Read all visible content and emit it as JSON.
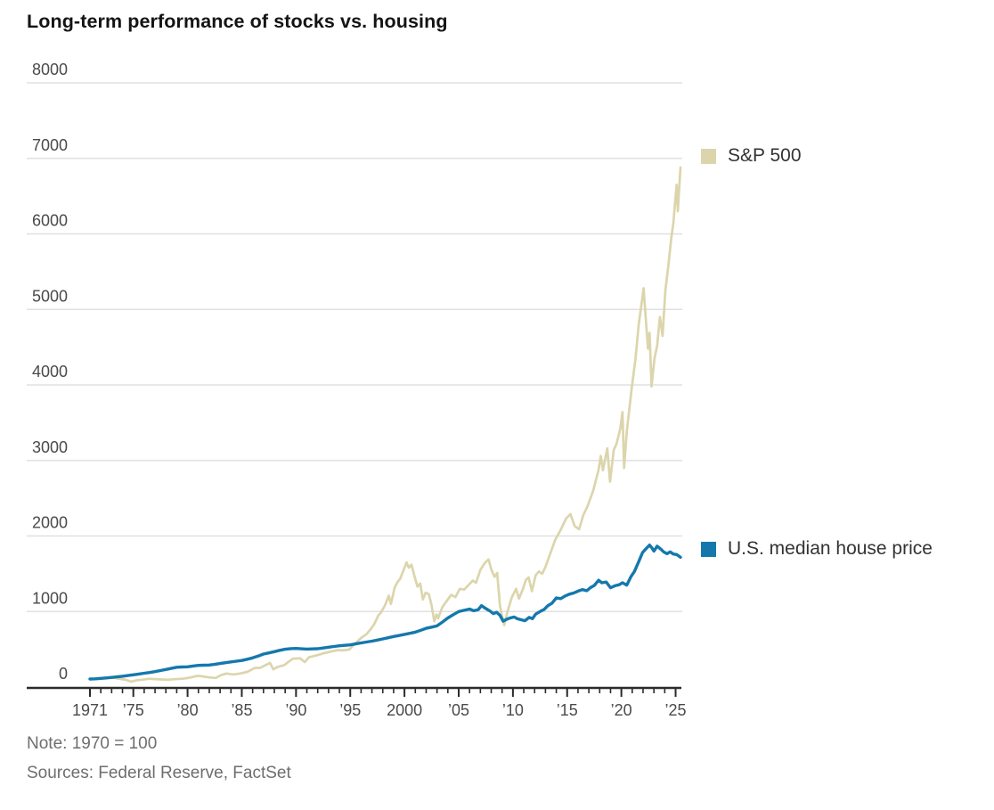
{
  "title": "Long-term performance of stocks vs. housing",
  "note": "Note: 1970 = 100",
  "sources": "Sources: Federal Reserve, FactSet",
  "colors": {
    "sp500": "#dcd5ac",
    "house": "#1478ad",
    "grid": "#e0e0e0",
    "axis": "#2b2b2b",
    "tick_label": "#4a4a4a",
    "title_text": "#141414",
    "note_text": "#6e6e6e",
    "background": "#ffffff"
  },
  "legend": [
    {
      "label": "S&P 500",
      "color": "#dcd5ac"
    },
    {
      "label": "U.S. median house price",
      "color": "#1478ad"
    }
  ],
  "chart_data": {
    "type": "line",
    "title": "Long-term performance of stocks vs. housing",
    "xlabel": "",
    "ylabel": "",
    "note": "1970 = 100",
    "grid": true,
    "legend_position": "right of plot, aligned with series endpoints",
    "x_domain": [
      1971,
      2025.45
    ],
    "y_domain": [
      0,
      8000
    ],
    "y_ticks": [
      0,
      1000,
      2000,
      3000,
      4000,
      5000,
      6000,
      7000,
      8000
    ],
    "x_ticks": [
      {
        "year": 1971,
        "label": "1971"
      },
      {
        "year": 1975,
        "label": "’75"
      },
      {
        "year": 1980,
        "label": "’80"
      },
      {
        "year": 1985,
        "label": "’85"
      },
      {
        "year": 1990,
        "label": "’90"
      },
      {
        "year": 1995,
        "label": "’95"
      },
      {
        "year": 2000,
        "label": "2000"
      },
      {
        "year": 2005,
        "label": "’05"
      },
      {
        "year": 2010,
        "label": "’10"
      },
      {
        "year": 2015,
        "label": "’15"
      },
      {
        "year": 2020,
        "label": "’20"
      },
      {
        "year": 2025,
        "label": "’25"
      }
    ],
    "minor_tick_years_step": 1,
    "series": [
      {
        "name": "S&P 500",
        "color": "#dcd5ac",
        "points": [
          [
            1971,
            104
          ],
          [
            1971.5,
            110
          ],
          [
            1972,
            116
          ],
          [
            1972.9,
            127
          ],
          [
            1973.3,
            120
          ],
          [
            1973.8,
            106
          ],
          [
            1974.2,
            99
          ],
          [
            1974.8,
            72
          ],
          [
            1975.3,
            90
          ],
          [
            1975.8,
            97
          ],
          [
            1976.5,
            110
          ],
          [
            1977,
            105
          ],
          [
            1977.8,
            99
          ],
          [
            1978.2,
            96
          ],
          [
            1978.8,
            104
          ],
          [
            1979.5,
            110
          ],
          [
            1980,
            119
          ],
          [
            1980.9,
            148
          ],
          [
            1981.3,
            143
          ],
          [
            1982,
            128
          ],
          [
            1982.6,
            120
          ],
          [
            1983.1,
            158
          ],
          [
            1983.6,
            179
          ],
          [
            1984.2,
            166
          ],
          [
            1984.8,
            178
          ],
          [
            1985.5,
            200
          ],
          [
            1986.2,
            252
          ],
          [
            1986.7,
            255
          ],
          [
            1987.6,
            320
          ],
          [
            1987.9,
            235
          ],
          [
            1988.3,
            265
          ],
          [
            1988.9,
            290
          ],
          [
            1989.7,
            375
          ],
          [
            1990.4,
            380
          ],
          [
            1990.8,
            330
          ],
          [
            1991.2,
            395
          ],
          [
            1991.9,
            420
          ],
          [
            1992.5,
            445
          ],
          [
            1993.2,
            470
          ],
          [
            1993.9,
            490
          ],
          [
            1994.3,
            485
          ],
          [
            1994.9,
            495
          ],
          [
            1995.5,
            580
          ],
          [
            1996,
            650
          ],
          [
            1996.5,
            700
          ],
          [
            1996.8,
            750
          ],
          [
            1997.2,
            830
          ],
          [
            1997.6,
            950
          ],
          [
            1997.8,
            980
          ],
          [
            1998.2,
            1080
          ],
          [
            1998.55,
            1210
          ],
          [
            1998.75,
            1100
          ],
          [
            1999.1,
            1320
          ],
          [
            1999.4,
            1400
          ],
          [
            1999.6,
            1430
          ],
          [
            2000.2,
            1650
          ],
          [
            2000.4,
            1580
          ],
          [
            2000.65,
            1620
          ],
          [
            2000.9,
            1480
          ],
          [
            2001.2,
            1330
          ],
          [
            2001.45,
            1370
          ],
          [
            2001.7,
            1160
          ],
          [
            2001.95,
            1250
          ],
          [
            2002.25,
            1230
          ],
          [
            2002.5,
            1080
          ],
          [
            2002.75,
            870
          ],
          [
            2002.95,
            960
          ],
          [
            2003.1,
            910
          ],
          [
            2003.5,
            1060
          ],
          [
            2003.9,
            1140
          ],
          [
            2004.3,
            1220
          ],
          [
            2004.7,
            1190
          ],
          [
            2005.1,
            1300
          ],
          [
            2005.5,
            1290
          ],
          [
            2005.9,
            1350
          ],
          [
            2006.3,
            1410
          ],
          [
            2006.6,
            1380
          ],
          [
            2007,
            1550
          ],
          [
            2007.4,
            1640
          ],
          [
            2007.75,
            1690
          ],
          [
            2008,
            1560
          ],
          [
            2008.3,
            1460
          ],
          [
            2008.55,
            1510
          ],
          [
            2008.8,
            1080
          ],
          [
            2008.95,
            970
          ],
          [
            2009.2,
            820
          ],
          [
            2009.5,
            1000
          ],
          [
            2009.9,
            1190
          ],
          [
            2010.3,
            1300
          ],
          [
            2010.55,
            1170
          ],
          [
            2010.9,
            1290
          ],
          [
            2011.2,
            1420
          ],
          [
            2011.45,
            1450
          ],
          [
            2011.75,
            1270
          ],
          [
            2012.1,
            1480
          ],
          [
            2012.4,
            1530
          ],
          [
            2012.7,
            1500
          ],
          [
            2013,
            1590
          ],
          [
            2013.5,
            1790
          ],
          [
            2013.9,
            1950
          ],
          [
            2014.4,
            2080
          ],
          [
            2014.9,
            2230
          ],
          [
            2015.3,
            2290
          ],
          [
            2015.7,
            2130
          ],
          [
            2016.1,
            2090
          ],
          [
            2016.5,
            2280
          ],
          [
            2016.9,
            2400
          ],
          [
            2017.4,
            2600
          ],
          [
            2017.9,
            2880
          ],
          [
            2018.1,
            3060
          ],
          [
            2018.3,
            2870
          ],
          [
            2018.7,
            3160
          ],
          [
            2018.95,
            2720
          ],
          [
            2019.3,
            3140
          ],
          [
            2019.55,
            3220
          ],
          [
            2019.9,
            3420
          ],
          [
            2020.1,
            3640
          ],
          [
            2020.25,
            2900
          ],
          [
            2020.5,
            3380
          ],
          [
            2020.75,
            3700
          ],
          [
            2020.95,
            3950
          ],
          [
            2021.3,
            4350
          ],
          [
            2021.6,
            4800
          ],
          [
            2021.95,
            5170
          ],
          [
            2022.05,
            5280
          ],
          [
            2022.3,
            4790
          ],
          [
            2022.45,
            4480
          ],
          [
            2022.6,
            4690
          ],
          [
            2022.78,
            3980
          ],
          [
            2023.05,
            4350
          ],
          [
            2023.3,
            4520
          ],
          [
            2023.55,
            4900
          ],
          [
            2023.8,
            4650
          ],
          [
            2024.05,
            5250
          ],
          [
            2024.35,
            5600
          ],
          [
            2024.6,
            5950
          ],
          [
            2024.8,
            6150
          ],
          [
            2024.95,
            6420
          ],
          [
            2025.1,
            6650
          ],
          [
            2025.2,
            6300
          ],
          [
            2025.45,
            6880
          ]
        ]
      },
      {
        "name": "U.S. median house price",
        "color": "#1478ad",
        "points": [
          [
            1971,
            106
          ],
          [
            1971.5,
            109
          ],
          [
            1972,
            114
          ],
          [
            1972.5,
            120
          ],
          [
            1973,
            127
          ],
          [
            1973.5,
            135
          ],
          [
            1974,
            143
          ],
          [
            1974.5,
            152
          ],
          [
            1975,
            162
          ],
          [
            1975.5,
            172
          ],
          [
            1976,
            183
          ],
          [
            1976.5,
            192
          ],
          [
            1977,
            204
          ],
          [
            1977.5,
            218
          ],
          [
            1978,
            233
          ],
          [
            1978.5,
            247
          ],
          [
            1979,
            262
          ],
          [
            1979.5,
            266
          ],
          [
            1980,
            268
          ],
          [
            1980.5,
            278
          ],
          [
            1981,
            287
          ],
          [
            1981.5,
            289
          ],
          [
            1982,
            291
          ],
          [
            1982.5,
            300
          ],
          [
            1983,
            312
          ],
          [
            1983.5,
            322
          ],
          [
            1984,
            333
          ],
          [
            1984.5,
            342
          ],
          [
            1985,
            352
          ],
          [
            1985.5,
            368
          ],
          [
            1986,
            386
          ],
          [
            1986.5,
            410
          ],
          [
            1987,
            437
          ],
          [
            1987.5,
            452
          ],
          [
            1988,
            468
          ],
          [
            1988.5,
            486
          ],
          [
            1989,
            500
          ],
          [
            1989.5,
            508
          ],
          [
            1990,
            511
          ],
          [
            1990.5,
            506
          ],
          [
            1991,
            503
          ],
          [
            1991.5,
            505
          ],
          [
            1992,
            507
          ],
          [
            1992.5,
            517
          ],
          [
            1993,
            528
          ],
          [
            1993.5,
            537
          ],
          [
            1994,
            546
          ],
          [
            1994.5,
            552
          ],
          [
            1995,
            558
          ],
          [
            1995.5,
            571
          ],
          [
            1996,
            584
          ],
          [
            1996.5,
            596
          ],
          [
            1997,
            608
          ],
          [
            1997.5,
            622
          ],
          [
            1998,
            637
          ],
          [
            1998.5,
            653
          ],
          [
            1999,
            669
          ],
          [
            1999.5,
            682
          ],
          [
            2000,
            697
          ],
          [
            2000.5,
            711
          ],
          [
            2001,
            727
          ],
          [
            2001.5,
            752
          ],
          [
            2002,
            778
          ],
          [
            2002.5,
            793
          ],
          [
            2003,
            810
          ],
          [
            2003.5,
            860
          ],
          [
            2004,
            915
          ],
          [
            2004.5,
            958
          ],
          [
            2005,
            1000
          ],
          [
            2005.5,
            1016
          ],
          [
            2006,
            1032
          ],
          [
            2006.4,
            1010
          ],
          [
            2006.8,
            1025
          ],
          [
            2007.1,
            1077
          ],
          [
            2007.5,
            1040
          ],
          [
            2007.9,
            1005
          ],
          [
            2008.2,
            972
          ],
          [
            2008.5,
            990
          ],
          [
            2008.8,
            950
          ],
          [
            2009.1,
            872
          ],
          [
            2009.4,
            895
          ],
          [
            2009.7,
            912
          ],
          [
            2010.1,
            928
          ],
          [
            2010.4,
            905
          ],
          [
            2010.8,
            890
          ],
          [
            2011.1,
            878
          ],
          [
            2011.5,
            922
          ],
          [
            2011.8,
            905
          ],
          [
            2012.1,
            965
          ],
          [
            2012.5,
            1000
          ],
          [
            2012.9,
            1030
          ],
          [
            2013.2,
            1075
          ],
          [
            2013.6,
            1110
          ],
          [
            2014,
            1180
          ],
          [
            2014.4,
            1170
          ],
          [
            2014.8,
            1205
          ],
          [
            2015.2,
            1230
          ],
          [
            2015.6,
            1245
          ],
          [
            2016,
            1270
          ],
          [
            2016.4,
            1290
          ],
          [
            2016.8,
            1275
          ],
          [
            2017.2,
            1320
          ],
          [
            2017.5,
            1345
          ],
          [
            2017.9,
            1414
          ],
          [
            2018.2,
            1380
          ],
          [
            2018.6,
            1390
          ],
          [
            2019,
            1315
          ],
          [
            2019.4,
            1340
          ],
          [
            2019.8,
            1355
          ],
          [
            2020.1,
            1380
          ],
          [
            2020.5,
            1350
          ],
          [
            2020.9,
            1465
          ],
          [
            2021.2,
            1530
          ],
          [
            2021.6,
            1660
          ],
          [
            2021.95,
            1780
          ],
          [
            2022.3,
            1835
          ],
          [
            2022.6,
            1880
          ],
          [
            2022.8,
            1845
          ],
          [
            2023,
            1800
          ],
          [
            2023.3,
            1865
          ],
          [
            2023.6,
            1830
          ],
          [
            2023.9,
            1790
          ],
          [
            2024.2,
            1765
          ],
          [
            2024.5,
            1790
          ],
          [
            2024.8,
            1760
          ],
          [
            2025.1,
            1755
          ],
          [
            2025.45,
            1718
          ]
        ]
      }
    ]
  }
}
